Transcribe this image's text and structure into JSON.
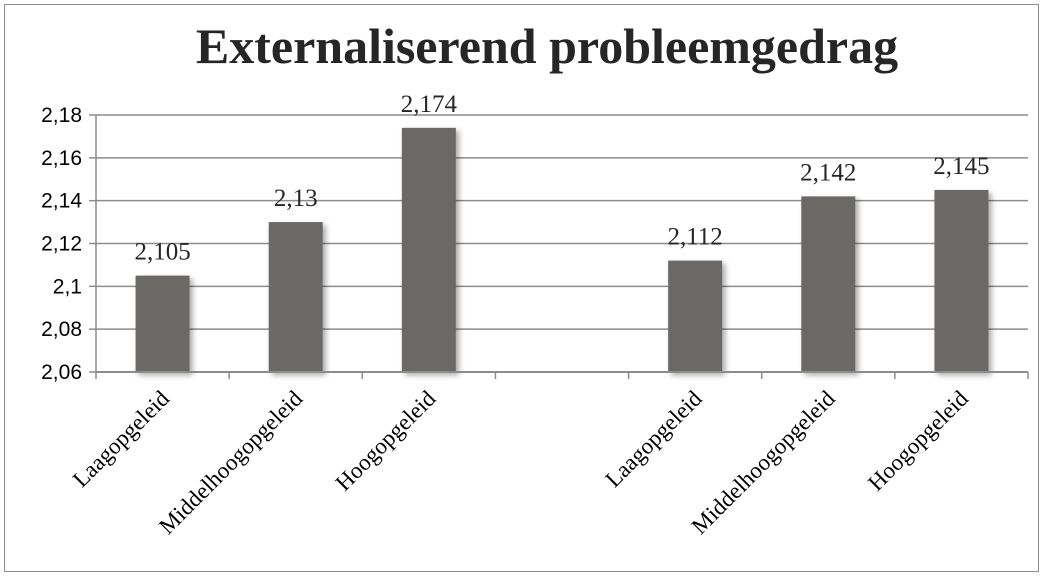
{
  "chart_data": {
    "type": "bar",
    "title": "Externaliserend probleemgedrag",
    "xlabel": "",
    "ylabel": "",
    "ylim": [
      2.06,
      2.18
    ],
    "yticks": [
      "2,06",
      "2,08",
      "2,1",
      "2,12",
      "2,14",
      "2,16",
      "2,18"
    ],
    "grid": true,
    "legend": "none",
    "colors": {
      "bar": "#6a6966",
      "grid": "#8c8c8c",
      "axis": "#8c8c8c"
    },
    "groups": [
      {
        "categories": [
          "Laagopgeleid",
          "Middelhoogopgeleid",
          "Hoogopgeleid"
        ],
        "values": [
          2.105,
          2.13,
          2.174
        ],
        "labels": [
          "2,105",
          "2,13",
          "2,174"
        ]
      },
      {
        "categories": [
          "Laagopgeleid",
          "Middelhoogopgeleid",
          "Hoogopgeleid"
        ],
        "values": [
          2.112,
          2.142,
          2.145
        ],
        "labels": [
          "2,112",
          "2,142",
          "2,145"
        ]
      }
    ]
  }
}
